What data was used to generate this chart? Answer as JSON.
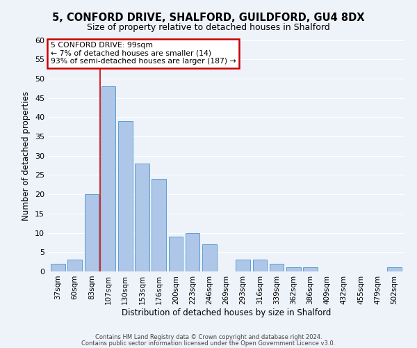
{
  "title1": "5, CONFORD DRIVE, SHALFORD, GUILDFORD, GU4 8DX",
  "title2": "Size of property relative to detached houses in Shalford",
  "xlabel": "Distribution of detached houses by size in Shalford",
  "ylabel": "Number of detached properties",
  "bar_labels": [
    "37sqm",
    "60sqm",
    "83sqm",
    "107sqm",
    "130sqm",
    "153sqm",
    "176sqm",
    "200sqm",
    "223sqm",
    "246sqm",
    "269sqm",
    "293sqm",
    "316sqm",
    "339sqm",
    "362sqm",
    "386sqm",
    "409sqm",
    "432sqm",
    "455sqm",
    "479sqm",
    "502sqm"
  ],
  "bar_values": [
    2,
    3,
    20,
    48,
    39,
    28,
    24,
    9,
    10,
    7,
    0,
    3,
    3,
    2,
    1,
    1,
    0,
    0,
    0,
    0,
    1
  ],
  "bar_color": "#aec6e8",
  "bar_edge_color": "#5a9fd4",
  "ylim": [
    0,
    60
  ],
  "yticks": [
    0,
    5,
    10,
    15,
    20,
    25,
    30,
    35,
    40,
    45,
    50,
    55,
    60
  ],
  "property_line_x": 3,
  "annotation_title": "5 CONFORD DRIVE: 99sqm",
  "annotation_line1": "← 7% of detached houses are smaller (14)",
  "annotation_line2": "93% of semi-detached houses are larger (187) →",
  "footer1": "Contains HM Land Registry data © Crown copyright and database right 2024.",
  "footer2": "Contains public sector information licensed under the Open Government Licence v3.0.",
  "background_color": "#eef2f9",
  "annotation_box_color": "#ffffff",
  "annotation_border_color": "#cc0000",
  "vline_color": "#cc0000"
}
